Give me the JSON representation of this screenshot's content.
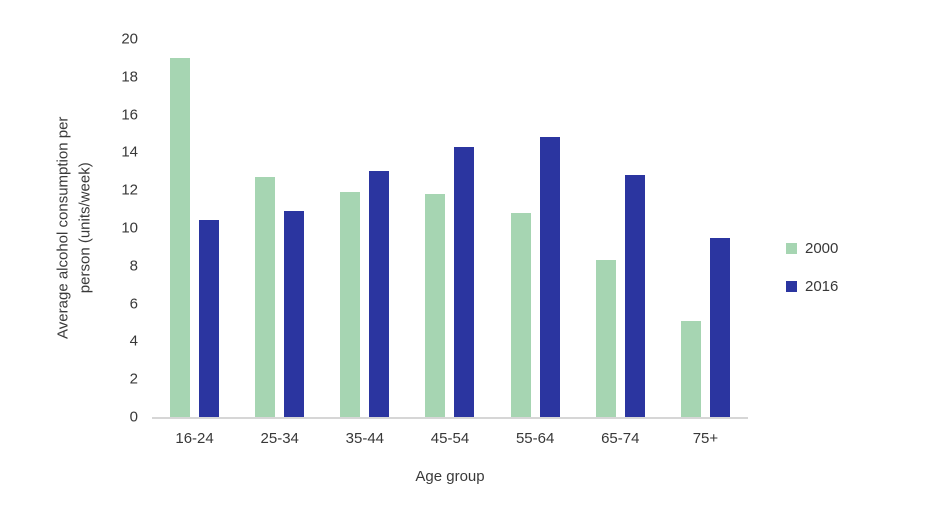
{
  "chart_data": {
    "type": "bar",
    "title": "",
    "categories": [
      "16-24",
      "25-34",
      "35-44",
      "45-54",
      "55-64",
      "65-74",
      "75+"
    ],
    "series": [
      {
        "name": "2000",
        "color": "#a6d5b2",
        "values": [
          19.0,
          12.7,
          11.9,
          11.8,
          10.8,
          8.3,
          5.1
        ]
      },
      {
        "name": "2016",
        "color": "#2b35a0",
        "values": [
          10.4,
          10.9,
          13.0,
          14.3,
          14.8,
          12.8,
          9.5
        ]
      }
    ],
    "xlabel": "Age group",
    "ylabel": "Average alcohol consumption per person (units/week)",
    "ylabel_lines": [
      "Average alcohol consumption per",
      "person (units/week)"
    ],
    "ylim": [
      0,
      20
    ],
    "ytick_step": 2,
    "yticks": [
      "20",
      "18",
      "16",
      "14",
      "12",
      "10",
      "8",
      "6",
      "4",
      "2",
      "0"
    ],
    "grid": false,
    "legend_position": "right",
    "axis_line_color": "#d6d6d6",
    "text_color": "#3a3a3a",
    "background_color": "#ffffff"
  }
}
